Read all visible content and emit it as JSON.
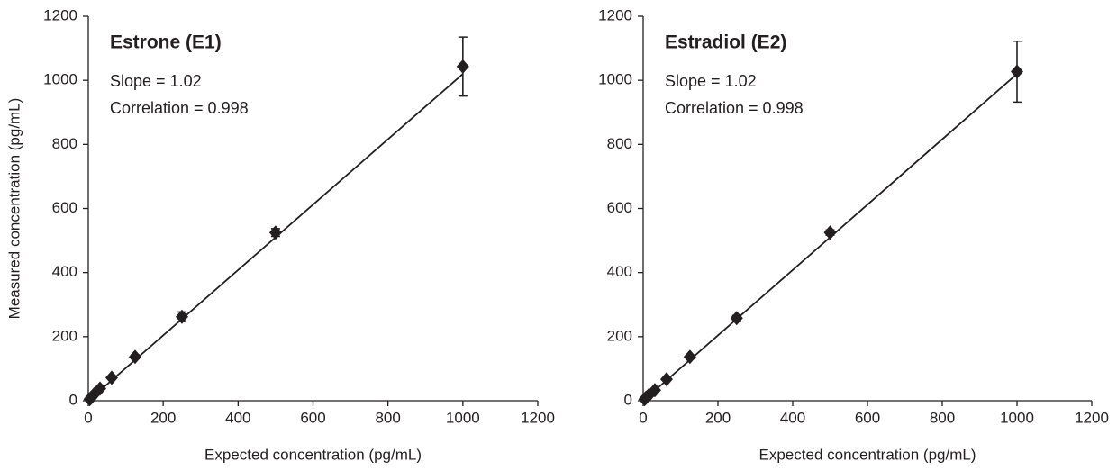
{
  "chart_data": [
    {
      "type": "scatter",
      "title": "Estrone (E1)",
      "annotations": [
        "Slope = 1.02",
        "Correlation = 0.998"
      ],
      "x_label": "Expected concentration (pg/mL)",
      "y_label": "Measured concentration (pg/mL)",
      "x": [
        3.9,
        7.8,
        15.6,
        31.25,
        62.5,
        125,
        250,
        500,
        1000
      ],
      "y": [
        5,
        10,
        20,
        38,
        72,
        137,
        262,
        525,
        1043
      ],
      "errors": [
        1,
        1,
        2,
        3,
        4,
        6,
        15,
        12,
        92
      ],
      "fit_line": {
        "x": [
          0,
          1000
        ],
        "y": [
          0,
          1020
        ]
      },
      "color": "#231f20",
      "xlim": [
        0,
        1200
      ],
      "ylim": [
        0,
        1200
      ],
      "xticks": [
        0,
        200,
        400,
        600,
        800,
        1000,
        1200
      ],
      "yticks": [
        0,
        200,
        400,
        600,
        800,
        1000,
        1200
      ]
    },
    {
      "type": "scatter",
      "title": "Estradiol (E2)",
      "annotations": [
        "Slope = 1.02",
        "Correlation = 0.998"
      ],
      "x_label": "Expected concentration (pg/mL)",
      "x": [
        3.9,
        7.8,
        15.6,
        31.25,
        62.5,
        125,
        250,
        500,
        1000
      ],
      "y": [
        5,
        10,
        18,
        33,
        67,
        137,
        258,
        525,
        1027
      ],
      "errors": [
        1,
        1,
        2,
        3,
        4,
        6,
        8,
        8,
        95
      ],
      "fit_line": {
        "x": [
          0,
          1000
        ],
        "y": [
          0,
          1020
        ]
      },
      "color": "#231f20",
      "xlim": [
        0,
        1200
      ],
      "ylim": [
        0,
        1200
      ],
      "xticks": [
        0,
        200,
        400,
        600,
        800,
        1000,
        1200
      ],
      "yticks": [
        0,
        200,
        400,
        600,
        800,
        1000,
        1200
      ]
    }
  ]
}
